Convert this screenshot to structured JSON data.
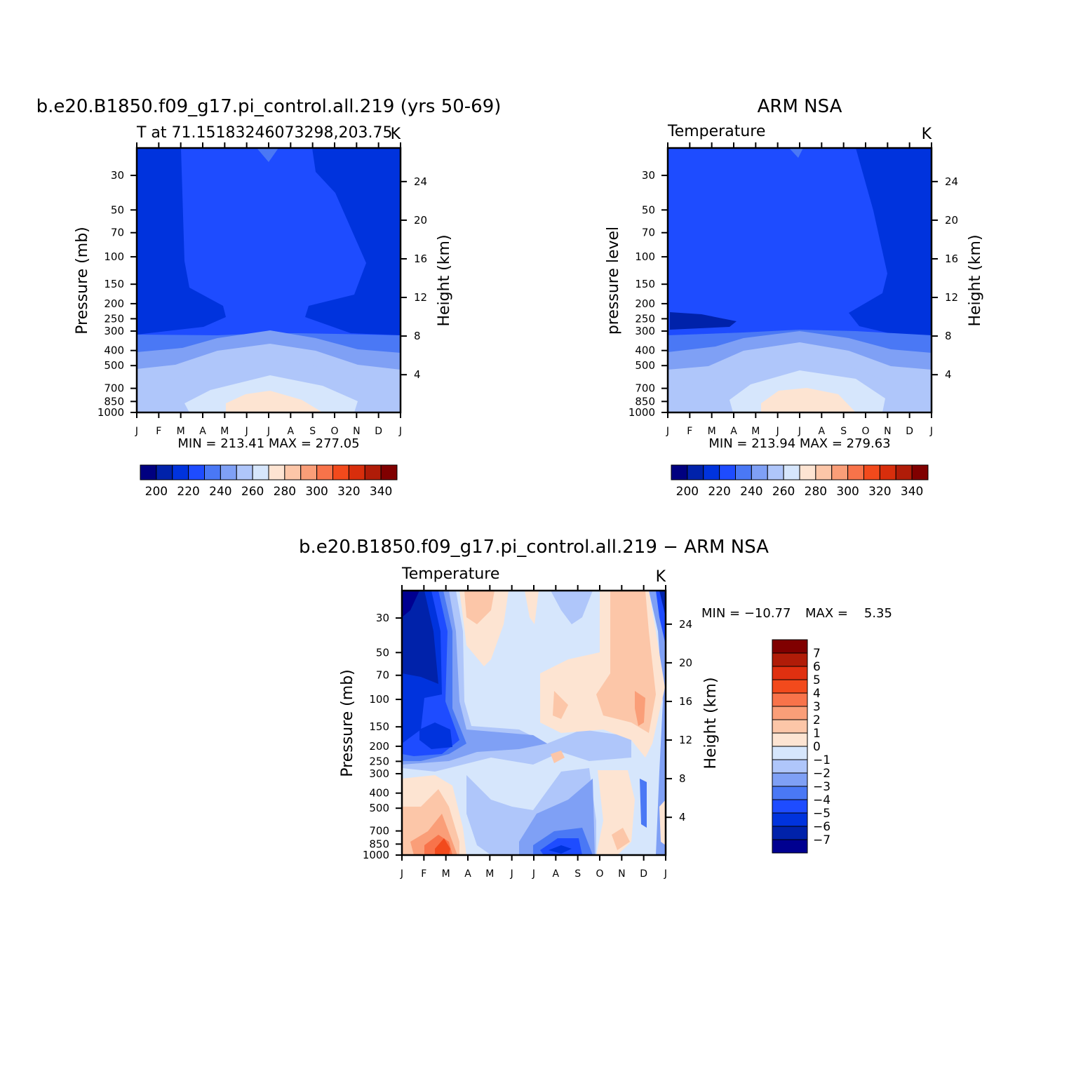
{
  "month_labels": [
    "J",
    "F",
    "M",
    "A",
    "M",
    "J",
    "J",
    "A",
    "S",
    "O",
    "N",
    "D",
    "J"
  ],
  "colors": {
    "abs_scale": [
      "#000080",
      "#0022aa",
      "#0033dd",
      "#1e4cff",
      "#4a78f5",
      "#7fa0f5",
      "#afc6fa",
      "#d6e6fc",
      "#fde4d2",
      "#fcc6a8",
      "#fa9e78",
      "#f8734a",
      "#f24a1c",
      "#d82e0c",
      "#b01c08",
      "#800000"
    ],
    "diff_scale": [
      "#000090",
      "#0022aa",
      "#0033dd",
      "#1e4cff",
      "#4a78f5",
      "#7fa0f5",
      "#afc6fa",
      "#d6e6fc",
      "#fde4d2",
      "#fcc6a8",
      "#fa9e78",
      "#f8734a",
      "#f24a1c",
      "#e03010",
      "#b01c08",
      "#800000"
    ]
  },
  "chart_data": [
    {
      "type": "heatmap",
      "id": "model",
      "title": "b.e20.B1850.f09_g17.pi_control.all.219 (yrs 50-69)",
      "subtitle": "T at 71.15183246073298,203.75",
      "units": "K",
      "ylabel": "Pressure (mb)",
      "y2label": "Height (km)",
      "x": [
        "J",
        "F",
        "M",
        "A",
        "M",
        "J",
        "J",
        "A",
        "S",
        "O",
        "N",
        "D",
        "J"
      ],
      "y_ticks": [
        30,
        50,
        70,
        100,
        150,
        200,
        250,
        300,
        400,
        500,
        700,
        850,
        1000
      ],
      "y2_ticks": [
        4,
        8,
        12,
        16,
        20,
        24
      ],
      "stats": "MIN = 213.41 MAX = 277.05",
      "colorbar_labels": [
        "200",
        "220",
        "240",
        "260",
        "280",
        "300",
        "320",
        "340"
      ],
      "levels": [
        190,
        200,
        210,
        220,
        230,
        240,
        250,
        260,
        270,
        280,
        290,
        300,
        310,
        320,
        330,
        340,
        350
      ],
      "ylim": [
        1000,
        20
      ],
      "values_profile": {
        "pressure": [
          20,
          30,
          50,
          100,
          150,
          200,
          250,
          300,
          400,
          500,
          700,
          850,
          1000
        ],
        "winter": [
          218,
          218,
          217,
          216,
          216,
          215,
          215,
          216,
          222,
          232,
          245,
          252,
          255
        ],
        "summer": [
          224,
          224,
          224,
          225,
          224,
          224,
          225,
          228,
          242,
          255,
          265,
          272,
          276
        ]
      }
    },
    {
      "type": "heatmap",
      "id": "obs",
      "title": "ARM NSA",
      "subtitle": "Temperature",
      "units": "K",
      "ylabel": "pressure level",
      "y2label": "Height (km)",
      "x": [
        "J",
        "F",
        "M",
        "A",
        "M",
        "J",
        "J",
        "A",
        "S",
        "O",
        "N",
        "D",
        "J"
      ],
      "y_ticks": [
        30,
        50,
        70,
        100,
        150,
        200,
        250,
        300,
        400,
        500,
        700,
        850,
        1000
      ],
      "y2_ticks": [
        4,
        8,
        12,
        16,
        20,
        24
      ],
      "stats": "MIN = 213.94 MAX = 279.63",
      "colorbar_labels": [
        "200",
        "220",
        "240",
        "260",
        "280",
        "300",
        "320",
        "340"
      ],
      "levels": [
        190,
        200,
        210,
        220,
        230,
        240,
        250,
        260,
        270,
        280,
        290,
        300,
        310,
        320,
        330,
        340,
        350
      ],
      "ylim": [
        1000,
        20
      ]
    },
    {
      "type": "heatmap",
      "id": "diff",
      "title": "b.e20.B1850.f09_g17.pi_control.all.219 − ARM NSA",
      "subtitle": "Temperature",
      "units": "K",
      "ylabel": "Pressure (mb)",
      "y2label": "Height (km)",
      "x": [
        "J",
        "F",
        "M",
        "A",
        "M",
        "J",
        "J",
        "A",
        "S",
        "O",
        "N",
        "D",
        "J"
      ],
      "y_ticks": [
        30,
        50,
        70,
        100,
        150,
        200,
        250,
        300,
        400,
        500,
        700,
        850,
        1000
      ],
      "y2_ticks": [
        4,
        8,
        12,
        16,
        20,
        24
      ],
      "stats_min": "MIN = −10.77",
      "stats_max": "MAX =    5.35",
      "colorbar_labels": [
        "7",
        "6",
        "5",
        "4",
        "3",
        "2",
        "1",
        "0",
        "−1",
        "−2",
        "−3",
        "−4",
        "−5",
        "−6",
        "−7"
      ],
      "levels": [
        -8,
        -7,
        -6,
        -5,
        -4,
        -3,
        -2,
        -1,
        0,
        1,
        2,
        3,
        4,
        5,
        6,
        7,
        8
      ],
      "ylim": [
        1000,
        20
      ]
    }
  ]
}
